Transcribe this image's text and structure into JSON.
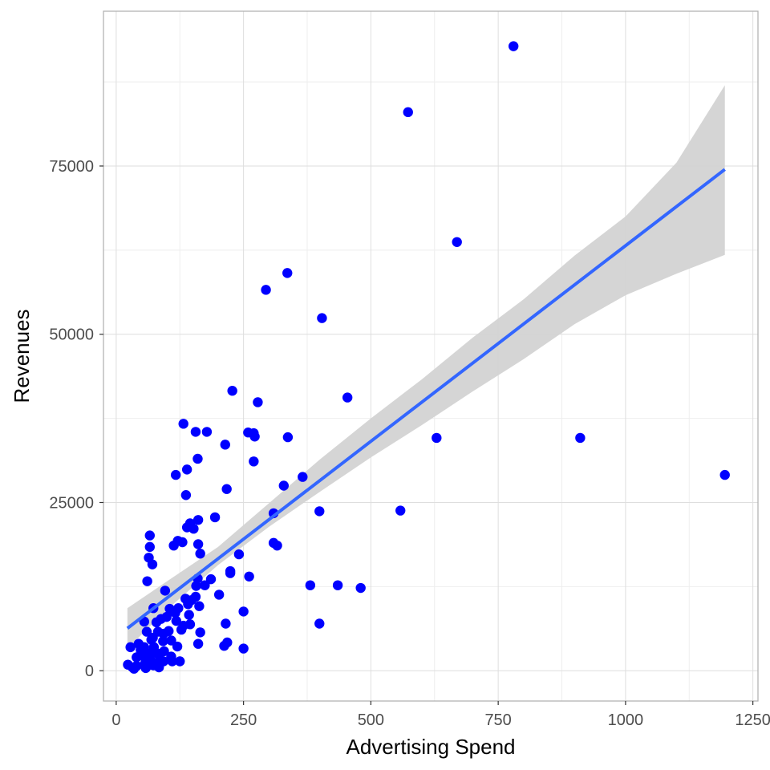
{
  "chart_data": {
    "type": "scatter",
    "title": "",
    "xlabel": "Advertising Spend",
    "ylabel": "Revenues",
    "xlim": [
      -25,
      1260
    ],
    "ylim": [
      -4500,
      98000
    ],
    "xticks": [
      0,
      250,
      500,
      750,
      1000,
      1250
    ],
    "yticks": [
      0,
      25000,
      50000,
      75000
    ],
    "xtick_labels": [
      "0",
      "250",
      "500",
      "750",
      "1000",
      "1250"
    ],
    "ytick_labels": [
      "0",
      "25000",
      "50000",
      "75000"
    ],
    "grid": true,
    "legend": "none",
    "point_color": "#0000ff",
    "smooth": {
      "method": "linear regression with confidence band",
      "color": "#3366ff",
      "band_color": "#d3d3d3",
      "line": [
        [
          22,
          6300
        ],
        [
          1195,
          74500
        ]
      ],
      "band": [
        {
          "x": 22,
          "lo": 3300,
          "hi": 9300
        },
        {
          "x": 100,
          "lo": 9100,
          "hi": 13300
        },
        {
          "x": 200,
          "lo": 15700,
          "hi": 18400
        },
        {
          "x": 300,
          "lo": 21400,
          "hi": 24900
        },
        {
          "x": 400,
          "lo": 26600,
          "hi": 31400
        },
        {
          "x": 500,
          "lo": 31700,
          "hi": 37500
        },
        {
          "x": 600,
          "lo": 36500,
          "hi": 43300
        },
        {
          "x": 700,
          "lo": 41500,
          "hi": 49500
        },
        {
          "x": 800,
          "lo": 46300,
          "hi": 55200
        },
        {
          "x": 900,
          "lo": 51500,
          "hi": 61700
        },
        {
          "x": 1000,
          "lo": 55800,
          "hi": 67500
        },
        {
          "x": 1100,
          "lo": 59000,
          "hi": 75500
        },
        {
          "x": 1195,
          "lo": 61800,
          "hi": 87000
        }
      ]
    },
    "points": [
      [
        780,
        92800
      ],
      [
        573,
        83000
      ],
      [
        669,
        63700
      ],
      [
        336,
        59100
      ],
      [
        294,
        56600
      ],
      [
        404,
        52400
      ],
      [
        454,
        40600
      ],
      [
        228,
        41600
      ],
      [
        278,
        39900
      ],
      [
        132,
        36700
      ],
      [
        156,
        35500
      ],
      [
        178,
        35500
      ],
      [
        259,
        35400
      ],
      [
        270,
        35300
      ],
      [
        272,
        34800
      ],
      [
        337,
        34700
      ],
      [
        629,
        34600
      ],
      [
        911,
        34600
      ],
      [
        214,
        33600
      ],
      [
        160,
        31500
      ],
      [
        270,
        31100
      ],
      [
        139,
        29900
      ],
      [
        117,
        29100
      ],
      [
        366,
        28800
      ],
      [
        1195,
        29100
      ],
      [
        329,
        27500
      ],
      [
        217,
        27000
      ],
      [
        137,
        26100
      ],
      [
        309,
        23400
      ],
      [
        399,
        23700
      ],
      [
        558,
        23800
      ],
      [
        194,
        22800
      ],
      [
        161,
        22400
      ],
      [
        145,
        21900
      ],
      [
        139,
        21300
      ],
      [
        152,
        21100
      ],
      [
        66,
        20100
      ],
      [
        130,
        19100
      ],
      [
        121,
        19300
      ],
      [
        161,
        18800
      ],
      [
        113,
        18600
      ],
      [
        309,
        19000
      ],
      [
        316,
        18600
      ],
      [
        66,
        18400
      ],
      [
        64,
        16800
      ],
      [
        165,
        17400
      ],
      [
        241,
        17300
      ],
      [
        71,
        15800
      ],
      [
        224,
        14800
      ],
      [
        224,
        14500
      ],
      [
        61,
        13300
      ],
      [
        261,
        14000
      ],
      [
        186,
        13600
      ],
      [
        160,
        13700
      ],
      [
        157,
        12600
      ],
      [
        174,
        12700
      ],
      [
        381,
        12700
      ],
      [
        435,
        12700
      ],
      [
        480,
        12300
      ],
      [
        96,
        11900
      ],
      [
        202,
        11300
      ],
      [
        156,
        11000
      ],
      [
        163,
        9600
      ],
      [
        148,
        10500
      ],
      [
        141,
        9900
      ],
      [
        136,
        10700
      ],
      [
        122,
        9300
      ],
      [
        105,
        9200
      ],
      [
        73,
        9300
      ],
      [
        250,
        8800
      ],
      [
        116,
        8600
      ],
      [
        143,
        8300
      ],
      [
        99,
        8000
      ],
      [
        88,
        7700
      ],
      [
        55,
        7300
      ],
      [
        79,
        7200
      ],
      [
        118,
        7400
      ],
      [
        215,
        7000
      ],
      [
        399,
        7000
      ],
      [
        132,
        6700
      ],
      [
        145,
        6900
      ],
      [
        128,
        6100
      ],
      [
        165,
        5700
      ],
      [
        93,
        5500
      ],
      [
        103,
        5900
      ],
      [
        82,
        5800
      ],
      [
        60,
        5800
      ],
      [
        72,
        4900
      ],
      [
        92,
        4400
      ],
      [
        108,
        4500
      ],
      [
        69,
        4600
      ],
      [
        44,
        4000
      ],
      [
        161,
        4000
      ],
      [
        120,
        3600
      ],
      [
        55,
        3500
      ],
      [
        74,
        3500
      ],
      [
        28,
        3500
      ],
      [
        48,
        3100
      ],
      [
        250,
        3300
      ],
      [
        212,
        3700
      ],
      [
        218,
        4200
      ],
      [
        80,
        2600
      ],
      [
        94,
        2900
      ],
      [
        66,
        2600
      ],
      [
        52,
        2200
      ],
      [
        108,
        2100
      ],
      [
        40,
        2000
      ],
      [
        62,
        1800
      ],
      [
        86,
        1700
      ],
      [
        93,
        1400
      ],
      [
        110,
        1400
      ],
      [
        125,
        1400
      ],
      [
        76,
        1100
      ],
      [
        56,
        1000
      ],
      [
        73,
        800
      ],
      [
        40,
        700
      ],
      [
        23,
        900
      ],
      [
        32,
        500
      ],
      [
        35,
        300
      ],
      [
        66,
        900
      ],
      [
        84,
        500
      ],
      [
        58,
        400
      ],
      [
        68,
        1500
      ]
    ]
  }
}
